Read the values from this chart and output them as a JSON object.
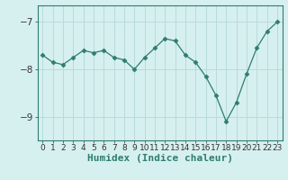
{
  "x": [
    0,
    1,
    2,
    3,
    4,
    5,
    6,
    7,
    8,
    9,
    10,
    11,
    12,
    13,
    14,
    15,
    16,
    17,
    18,
    19,
    20,
    21,
    22,
    23
  ],
  "y": [
    -7.7,
    -7.85,
    -7.9,
    -7.75,
    -7.6,
    -7.65,
    -7.6,
    -7.75,
    -7.8,
    -8.0,
    -7.75,
    -7.55,
    -7.35,
    -7.4,
    -7.7,
    -7.85,
    -8.15,
    -8.55,
    -9.1,
    -8.7,
    -8.1,
    -7.55,
    -7.2,
    -7.0
  ],
  "line_color": "#2e7d6e",
  "marker": "D",
  "marker_size": 2.5,
  "bg_color": "#d6f0ef",
  "grid_color": "#b8dbd9",
  "xlabel": "Humidex (Indice chaleur)",
  "yticks": [
    -9,
    -8,
    -7
  ],
  "ylim": [
    -9.5,
    -6.65
  ],
  "xlim": [
    -0.5,
    23.5
  ],
  "xlabel_fontsize": 8,
  "tick_fontsize": 7.5,
  "xtick_fontsize": 6.5
}
